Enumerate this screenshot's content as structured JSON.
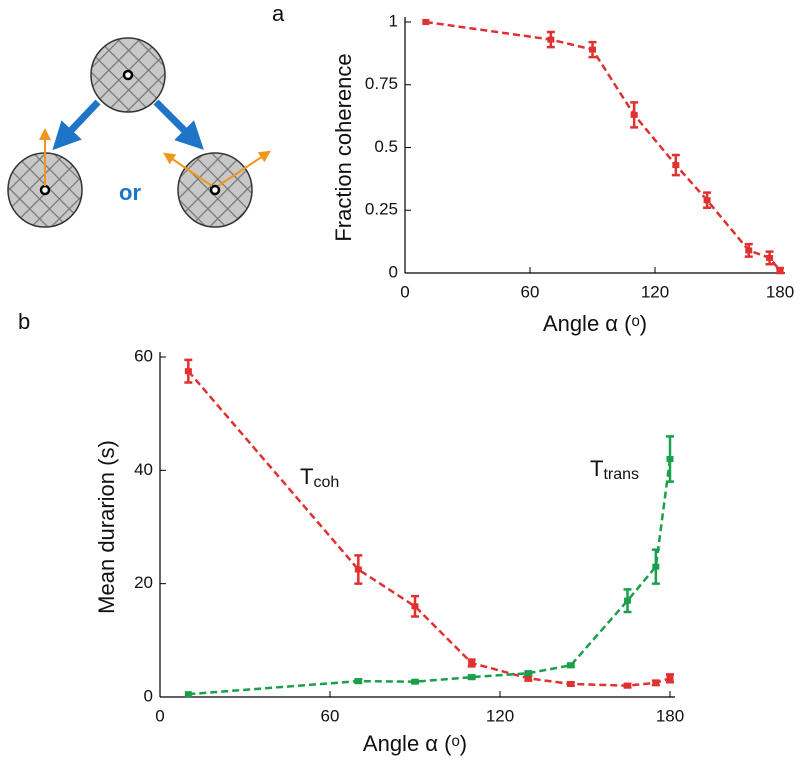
{
  "diagram": {
    "or_label": "or"
  },
  "chart_data": [
    {
      "type": "line",
      "panel_label": "a",
      "x_label": "Angle α (ᵒ)",
      "y_label": "Fraction coherence",
      "xlim": [
        0,
        180
      ],
      "xticks": [
        0,
        60,
        120,
        180
      ],
      "ylim": [
        0,
        1
      ],
      "yticks": [
        0,
        0.25,
        0.5,
        0.75,
        1
      ],
      "series": [
        {
          "color": "#e03030",
          "x": [
            10,
            70,
            90,
            110,
            130,
            145,
            165,
            175,
            180
          ],
          "values": [
            1.0,
            0.93,
            0.89,
            0.63,
            0.43,
            0.29,
            0.09,
            0.06,
            0.01
          ],
          "errors": [
            0,
            0.03,
            0.03,
            0.05,
            0.04,
            0.03,
            0.025,
            0.025,
            0.01
          ]
        }
      ]
    },
    {
      "type": "line",
      "panel_label": "b",
      "x_label": "Angle α (ᵒ)",
      "y_label": "Mean durarion (s)",
      "xlim": [
        0,
        180
      ],
      "xticks": [
        0,
        60,
        120,
        180
      ],
      "ylim": [
        0,
        60
      ],
      "yticks": [
        0,
        20,
        40,
        60
      ],
      "series": [
        {
          "name": "T",
          "subscript": "coh",
          "color": "#e03030",
          "x": [
            10,
            70,
            90,
            110,
            130,
            145,
            165,
            175,
            180
          ],
          "values": [
            57.5,
            22.5,
            16,
            6,
            3.3,
            2.3,
            2,
            2.5,
            3.3
          ],
          "errors": [
            2,
            2.5,
            1.8,
            0.6,
            0.4,
            0.3,
            0.3,
            0.4,
            0.7
          ]
        },
        {
          "name": "T",
          "subscript": "trans",
          "color": "#1aa04a",
          "x": [
            10,
            70,
            90,
            110,
            130,
            145,
            165,
            175,
            180
          ],
          "values": [
            0.5,
            2.8,
            2.7,
            3.5,
            4.2,
            5.6,
            17,
            23,
            42
          ],
          "errors": [
            0,
            0.3,
            0.2,
            0.3,
            0.3,
            0.3,
            2,
            3,
            4
          ]
        }
      ]
    }
  ]
}
